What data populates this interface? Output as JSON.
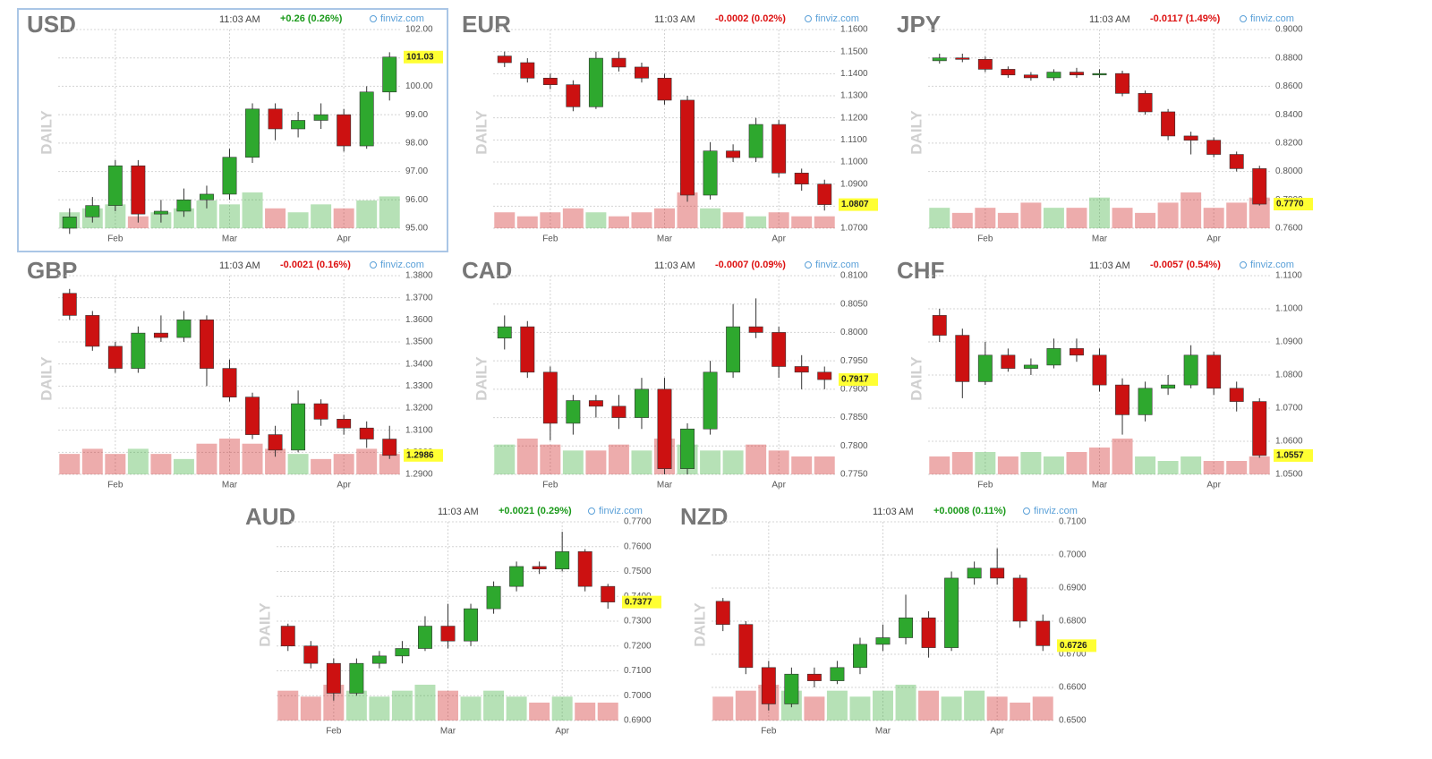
{
  "chart_data": [
    {
      "type": "candlestick",
      "title": "USD",
      "time": "11:03 AM",
      "change": "+0.26 (0.26%)",
      "change_color": "#1a9a1a",
      "source": "finviz.com",
      "side_label": "DAILY",
      "highlighted": true,
      "categories": [
        null,
        null,
        "Feb",
        null,
        null,
        null,
        null,
        "Mar",
        null,
        null,
        null,
        null,
        "Apr",
        null,
        null
      ],
      "open": [
        95.0,
        95.4,
        95.8,
        97.2,
        95.5,
        95.6,
        96.0,
        96.2,
        97.5,
        99.2,
        98.5,
        98.8,
        99.0,
        97.9,
        99.8
      ],
      "high": [
        95.7,
        96.1,
        97.4,
        97.4,
        96.0,
        96.4,
        96.5,
        97.8,
        99.4,
        99.4,
        99.1,
        99.4,
        99.2,
        100.0,
        101.2
      ],
      "low": [
        94.8,
        95.2,
        95.6,
        95.2,
        95.2,
        95.4,
        95.7,
        96.0,
        97.3,
        98.1,
        98.2,
        98.5,
        97.7,
        97.8,
        99.5
      ],
      "close": [
        95.4,
        95.8,
        97.2,
        95.5,
        95.6,
        96.0,
        96.2,
        97.5,
        99.2,
        98.5,
        98.8,
        99.0,
        97.9,
        99.8,
        101.03
      ],
      "volume": [
        4,
        5,
        6,
        3,
        4,
        5,
        7,
        6,
        9,
        5,
        4,
        6,
        5,
        7,
        8
      ],
      "last_label": "101.03",
      "up_color": "#2ea82e",
      "down_color": "#cc1111",
      "ylim": [
        95,
        102
      ],
      "yticks": [
        {
          "value": 95,
          "label": "95.00"
        },
        {
          "value": 96,
          "label": "96.00"
        },
        {
          "value": 97,
          "label": "97.00"
        },
        {
          "value": 98,
          "label": "98.00"
        },
        {
          "value": 99,
          "label": "99.00"
        },
        {
          "value": 100,
          "label": "100.00"
        },
        {
          "value": 101,
          "label": "101.00"
        },
        {
          "value": 102,
          "label": "102.00"
        }
      ]
    },
    {
      "type": "candlestick",
      "title": "EUR",
      "time": "11:03 AM",
      "change": "-0.0002 (0.02%)",
      "change_color": "#dd1111",
      "source": "finviz.com",
      "side_label": "DAILY",
      "highlighted": false,
      "categories": [
        null,
        null,
        "Feb",
        null,
        null,
        null,
        null,
        "Mar",
        null,
        null,
        null,
        null,
        "Apr",
        null,
        null
      ],
      "open": [
        1.148,
        1.145,
        1.138,
        1.135,
        1.125,
        1.147,
        1.143,
        1.138,
        1.128,
        1.085,
        1.105,
        1.102,
        1.117,
        1.095,
        1.09
      ],
      "high": [
        1.15,
        1.147,
        1.14,
        1.137,
        1.15,
        1.15,
        1.145,
        1.14,
        1.13,
        1.109,
        1.108,
        1.12,
        1.119,
        1.097,
        1.092
      ],
      "low": [
        1.143,
        1.136,
        1.133,
        1.123,
        1.124,
        1.141,
        1.136,
        1.126,
        1.082,
        1.083,
        1.1,
        1.1,
        1.093,
        1.087,
        1.078
      ],
      "close": [
        1.145,
        1.138,
        1.135,
        1.125,
        1.147,
        1.143,
        1.138,
        1.128,
        1.085,
        1.105,
        1.102,
        1.117,
        1.095,
        1.09,
        1.0807
      ],
      "volume": [
        4,
        3,
        4,
        5,
        4,
        3,
        4,
        5,
        9,
        5,
        4,
        3,
        4,
        3,
        3
      ],
      "last_label": "1.0807",
      "up_color": "#2ea82e",
      "down_color": "#cc1111",
      "ylim": [
        1.07,
        1.16
      ],
      "yticks": [
        {
          "value": 1.07,
          "label": "1.0700"
        },
        {
          "value": 1.08,
          "label": "1.0800"
        },
        {
          "value": 1.09,
          "label": "1.0900"
        },
        {
          "value": 1.1,
          "label": "1.1000"
        },
        {
          "value": 1.11,
          "label": "1.1100"
        },
        {
          "value": 1.12,
          "label": "1.1200"
        },
        {
          "value": 1.13,
          "label": "1.1300"
        },
        {
          "value": 1.14,
          "label": "1.1400"
        },
        {
          "value": 1.15,
          "label": "1.1500"
        },
        {
          "value": 1.16,
          "label": "1.1600"
        }
      ]
    },
    {
      "type": "candlestick",
      "title": "JPY",
      "time": "11:03 AM",
      "change": "-0.0117 (1.49%)",
      "change_color": "#dd1111",
      "source": "finviz.com",
      "side_label": "DAILY",
      "highlighted": false,
      "categories": [
        null,
        null,
        "Feb",
        null,
        null,
        null,
        null,
        "Mar",
        null,
        null,
        null,
        null,
        "Apr",
        null,
        null
      ],
      "open": [
        0.878,
        0.88,
        0.879,
        0.872,
        0.868,
        0.866,
        0.87,
        0.868,
        0.869,
        0.855,
        0.842,
        0.825,
        0.822,
        0.812,
        0.802
      ],
      "high": [
        0.883,
        0.883,
        0.881,
        0.874,
        0.87,
        0.872,
        0.873,
        0.872,
        0.871,
        0.857,
        0.844,
        0.828,
        0.824,
        0.814,
        0.804
      ],
      "low": [
        0.876,
        0.877,
        0.87,
        0.866,
        0.864,
        0.864,
        0.866,
        0.866,
        0.853,
        0.84,
        0.822,
        0.812,
        0.81,
        0.8,
        0.776
      ],
      "close": [
        0.88,
        0.879,
        0.872,
        0.868,
        0.866,
        0.87,
        0.868,
        0.869,
        0.855,
        0.842,
        0.825,
        0.822,
        0.812,
        0.802,
        0.777
      ],
      "volume": [
        4,
        3,
        4,
        3,
        5,
        4,
        4,
        6,
        4,
        3,
        5,
        7,
        4,
        5,
        6
      ],
      "last_label": "0.7770",
      "up_color": "#2ea82e",
      "down_color": "#cc1111",
      "ylim": [
        0.76,
        0.9
      ],
      "yticks": [
        {
          "value": 0.76,
          "label": "0.7600"
        },
        {
          "value": 0.78,
          "label": "0.7800"
        },
        {
          "value": 0.8,
          "label": "0.8000"
        },
        {
          "value": 0.82,
          "label": "0.8200"
        },
        {
          "value": 0.84,
          "label": "0.8400"
        },
        {
          "value": 0.86,
          "label": "0.8600"
        },
        {
          "value": 0.88,
          "label": "0.8800"
        },
        {
          "value": 0.9,
          "label": "0.9000"
        }
      ]
    },
    {
      "type": "candlestick",
      "title": "GBP",
      "time": "11:03 AM",
      "change": "-0.0021 (0.16%)",
      "change_color": "#dd1111",
      "source": "finviz.com",
      "side_label": "DAILY",
      "highlighted": false,
      "categories": [
        null,
        null,
        "Feb",
        null,
        null,
        null,
        null,
        "Mar",
        null,
        null,
        null,
        null,
        "Apr",
        null,
        null
      ],
      "open": [
        1.372,
        1.362,
        1.348,
        1.338,
        1.354,
        1.352,
        1.36,
        1.338,
        1.325,
        1.308,
        1.301,
        1.322,
        1.315,
        1.311,
        1.306
      ],
      "high": [
        1.374,
        1.364,
        1.35,
        1.357,
        1.362,
        1.364,
        1.362,
        1.342,
        1.327,
        1.312,
        1.328,
        1.324,
        1.317,
        1.314,
        1.312
      ],
      "low": [
        1.36,
        1.346,
        1.336,
        1.336,
        1.35,
        1.35,
        1.33,
        1.323,
        1.306,
        1.298,
        1.3,
        1.312,
        1.308,
        1.302,
        1.297
      ],
      "close": [
        1.362,
        1.348,
        1.338,
        1.354,
        1.352,
        1.36,
        1.338,
        1.325,
        1.308,
        1.301,
        1.322,
        1.315,
        1.311,
        1.306,
        1.2986
      ],
      "volume": [
        4,
        5,
        4,
        5,
        4,
        3,
        6,
        7,
        6,
        5,
        4,
        3,
        4,
        5,
        4
      ],
      "last_label": "1.2986",
      "up_color": "#2ea82e",
      "down_color": "#cc1111",
      "ylim": [
        1.29,
        1.38
      ],
      "yticks": [
        {
          "value": 1.29,
          "label": "1.2900"
        },
        {
          "value": 1.3,
          "label": "1.3000"
        },
        {
          "value": 1.31,
          "label": "1.3100"
        },
        {
          "value": 1.32,
          "label": "1.3200"
        },
        {
          "value": 1.33,
          "label": "1.3300"
        },
        {
          "value": 1.34,
          "label": "1.3400"
        },
        {
          "value": 1.35,
          "label": "1.3500"
        },
        {
          "value": 1.36,
          "label": "1.3600"
        },
        {
          "value": 1.37,
          "label": "1.3700"
        },
        {
          "value": 1.38,
          "label": "1.3800"
        }
      ]
    },
    {
      "type": "candlestick",
      "title": "CAD",
      "time": "11:03 AM",
      "change": "-0.0007 (0.09%)",
      "change_color": "#dd1111",
      "source": "finviz.com",
      "side_label": "DAILY",
      "highlighted": false,
      "categories": [
        null,
        null,
        "Feb",
        null,
        null,
        null,
        null,
        "Mar",
        null,
        null,
        null,
        null,
        "Apr",
        null,
        null
      ],
      "open": [
        0.799,
        0.801,
        0.793,
        0.784,
        0.788,
        0.787,
        0.785,
        0.79,
        0.776,
        0.783,
        0.793,
        0.801,
        0.8,
        0.794,
        0.793
      ],
      "high": [
        0.803,
        0.802,
        0.794,
        0.789,
        0.789,
        0.789,
        0.792,
        0.792,
        0.784,
        0.795,
        0.805,
        0.806,
        0.801,
        0.796,
        0.794
      ],
      "low": [
        0.797,
        0.792,
        0.781,
        0.782,
        0.785,
        0.783,
        0.783,
        0.775,
        0.775,
        0.782,
        0.792,
        0.799,
        0.792,
        0.79,
        0.79
      ],
      "close": [
        0.801,
        0.793,
        0.784,
        0.788,
        0.787,
        0.785,
        0.79,
        0.776,
        0.783,
        0.793,
        0.801,
        0.8,
        0.794,
        0.793,
        0.7917
      ],
      "volume": [
        5,
        6,
        5,
        4,
        4,
        5,
        4,
        6,
        5,
        4,
        4,
        5,
        4,
        3,
        3
      ],
      "last_label": "0.7917",
      "up_color": "#2ea82e",
      "down_color": "#cc1111",
      "ylim": [
        0.775,
        0.81
      ],
      "yticks": [
        {
          "value": 0.775,
          "label": "0.7750"
        },
        {
          "value": 0.78,
          "label": "0.7800"
        },
        {
          "value": 0.785,
          "label": "0.7850"
        },
        {
          "value": 0.79,
          "label": "0.7900"
        },
        {
          "value": 0.795,
          "label": "0.7950"
        },
        {
          "value": 0.8,
          "label": "0.8000"
        },
        {
          "value": 0.805,
          "label": "0.8050"
        },
        {
          "value": 0.81,
          "label": "0.8100"
        }
      ]
    },
    {
      "type": "candlestick",
      "title": "CHF",
      "time": "11:03 AM",
      "change": "-0.0057 (0.54%)",
      "change_color": "#dd1111",
      "source": "finviz.com",
      "side_label": "DAILY",
      "highlighted": false,
      "categories": [
        null,
        null,
        "Feb",
        null,
        null,
        null,
        null,
        "Mar",
        null,
        null,
        null,
        null,
        "Apr",
        null,
        null
      ],
      "open": [
        1.098,
        1.092,
        1.078,
        1.086,
        1.082,
        1.083,
        1.088,
        1.086,
        1.077,
        1.068,
        1.076,
        1.077,
        1.086,
        1.076,
        1.072
      ],
      "high": [
        1.1,
        1.094,
        1.09,
        1.088,
        1.085,
        1.091,
        1.091,
        1.088,
        1.079,
        1.078,
        1.08,
        1.089,
        1.087,
        1.078,
        1.073
      ],
      "low": [
        1.09,
        1.073,
        1.077,
        1.081,
        1.08,
        1.082,
        1.084,
        1.075,
        1.062,
        1.066,
        1.074,
        1.076,
        1.074,
        1.069,
        1.055
      ],
      "close": [
        1.092,
        1.078,
        1.086,
        1.082,
        1.083,
        1.088,
        1.086,
        1.077,
        1.068,
        1.076,
        1.077,
        1.086,
        1.076,
        1.072,
        1.0557
      ],
      "volume": [
        4,
        5,
        5,
        4,
        5,
        4,
        5,
        6,
        8,
        4,
        3,
        4,
        3,
        3,
        4
      ],
      "last_label": "1.0557",
      "up_color": "#2ea82e",
      "down_color": "#cc1111",
      "ylim": [
        1.05,
        1.11
      ],
      "yticks": [
        {
          "value": 1.05,
          "label": "1.0500"
        },
        {
          "value": 1.06,
          "label": "1.0600"
        },
        {
          "value": 1.07,
          "label": "1.0700"
        },
        {
          "value": 1.08,
          "label": "1.0800"
        },
        {
          "value": 1.09,
          "label": "1.0900"
        },
        {
          "value": 1.1,
          "label": "1.1000"
        },
        {
          "value": 1.11,
          "label": "1.1100"
        }
      ]
    },
    {
      "type": "candlestick",
      "title": "AUD",
      "time": "11:03 AM",
      "change": "+0.0021 (0.29%)",
      "change_color": "#1a9a1a",
      "source": "finviz.com",
      "side_label": "DAILY",
      "highlighted": false,
      "categories": [
        null,
        null,
        "Feb",
        null,
        null,
        null,
        null,
        "Mar",
        null,
        null,
        null,
        null,
        "Apr",
        null,
        null
      ],
      "open": [
        0.728,
        0.72,
        0.713,
        0.701,
        0.713,
        0.716,
        0.719,
        0.728,
        0.722,
        0.735,
        0.744,
        0.752,
        0.751,
        0.758,
        0.744
      ],
      "high": [
        0.729,
        0.722,
        0.715,
        0.715,
        0.718,
        0.722,
        0.732,
        0.737,
        0.737,
        0.746,
        0.754,
        0.754,
        0.766,
        0.759,
        0.745
      ],
      "low": [
        0.718,
        0.711,
        0.698,
        0.7,
        0.711,
        0.713,
        0.718,
        0.719,
        0.72,
        0.733,
        0.742,
        0.749,
        0.75,
        0.742,
        0.735
      ],
      "close": [
        0.72,
        0.713,
        0.701,
        0.713,
        0.716,
        0.719,
        0.728,
        0.722,
        0.735,
        0.744,
        0.752,
        0.751,
        0.758,
        0.744,
        0.7377
      ],
      "volume": [
        5,
        4,
        6,
        5,
        4,
        5,
        6,
        5,
        4,
        5,
        4,
        3,
        4,
        3,
        3
      ],
      "last_label": "0.7377",
      "up_color": "#2ea82e",
      "down_color": "#cc1111",
      "ylim": [
        0.69,
        0.77
      ],
      "yticks": [
        {
          "value": 0.69,
          "label": "0.6900"
        },
        {
          "value": 0.7,
          "label": "0.7000"
        },
        {
          "value": 0.71,
          "label": "0.7100"
        },
        {
          "value": 0.72,
          "label": "0.7200"
        },
        {
          "value": 0.73,
          "label": "0.7300"
        },
        {
          "value": 0.74,
          "label": "0.7400"
        },
        {
          "value": 0.75,
          "label": "0.7500"
        },
        {
          "value": 0.76,
          "label": "0.7600"
        },
        {
          "value": 0.77,
          "label": "0.7700"
        }
      ]
    },
    {
      "type": "candlestick",
      "title": "NZD",
      "time": "11:03 AM",
      "change": "+0.0008 (0.11%)",
      "change_color": "#1a9a1a",
      "source": "finviz.com",
      "side_label": "DAILY",
      "highlighted": false,
      "categories": [
        null,
        null,
        "Feb",
        null,
        null,
        null,
        null,
        "Mar",
        null,
        null,
        null,
        null,
        "Apr",
        null,
        null
      ],
      "open": [
        0.686,
        0.679,
        0.666,
        0.655,
        0.664,
        0.662,
        0.666,
        0.673,
        0.675,
        0.681,
        0.672,
        0.693,
        0.696,
        0.693,
        0.68
      ],
      "high": [
        0.687,
        0.68,
        0.668,
        0.666,
        0.666,
        0.668,
        0.675,
        0.679,
        0.688,
        0.683,
        0.695,
        0.698,
        0.702,
        0.694,
        0.682
      ],
      "low": [
        0.677,
        0.664,
        0.653,
        0.654,
        0.66,
        0.661,
        0.664,
        0.671,
        0.673,
        0.669,
        0.671,
        0.691,
        0.691,
        0.678,
        0.671
      ],
      "close": [
        0.679,
        0.666,
        0.655,
        0.664,
        0.662,
        0.666,
        0.673,
        0.675,
        0.681,
        0.672,
        0.693,
        0.696,
        0.693,
        0.68,
        0.6726
      ],
      "volume": [
        4,
        5,
        6,
        5,
        4,
        5,
        4,
        5,
        6,
        5,
        4,
        5,
        4,
        3,
        4
      ],
      "last_label": "0.6726",
      "up_color": "#2ea82e",
      "down_color": "#cc1111",
      "ylim": [
        0.65,
        0.71
      ],
      "yticks": [
        {
          "value": 0.65,
          "label": "0.6500"
        },
        {
          "value": 0.66,
          "label": "0.6600"
        },
        {
          "value": 0.67,
          "label": "0.6700"
        },
        {
          "value": 0.68,
          "label": "0.6800"
        },
        {
          "value": 0.69,
          "label": "0.6900"
        },
        {
          "value": 0.7,
          "label": "0.7000"
        },
        {
          "value": 0.71,
          "label": "0.7100"
        }
      ]
    }
  ]
}
